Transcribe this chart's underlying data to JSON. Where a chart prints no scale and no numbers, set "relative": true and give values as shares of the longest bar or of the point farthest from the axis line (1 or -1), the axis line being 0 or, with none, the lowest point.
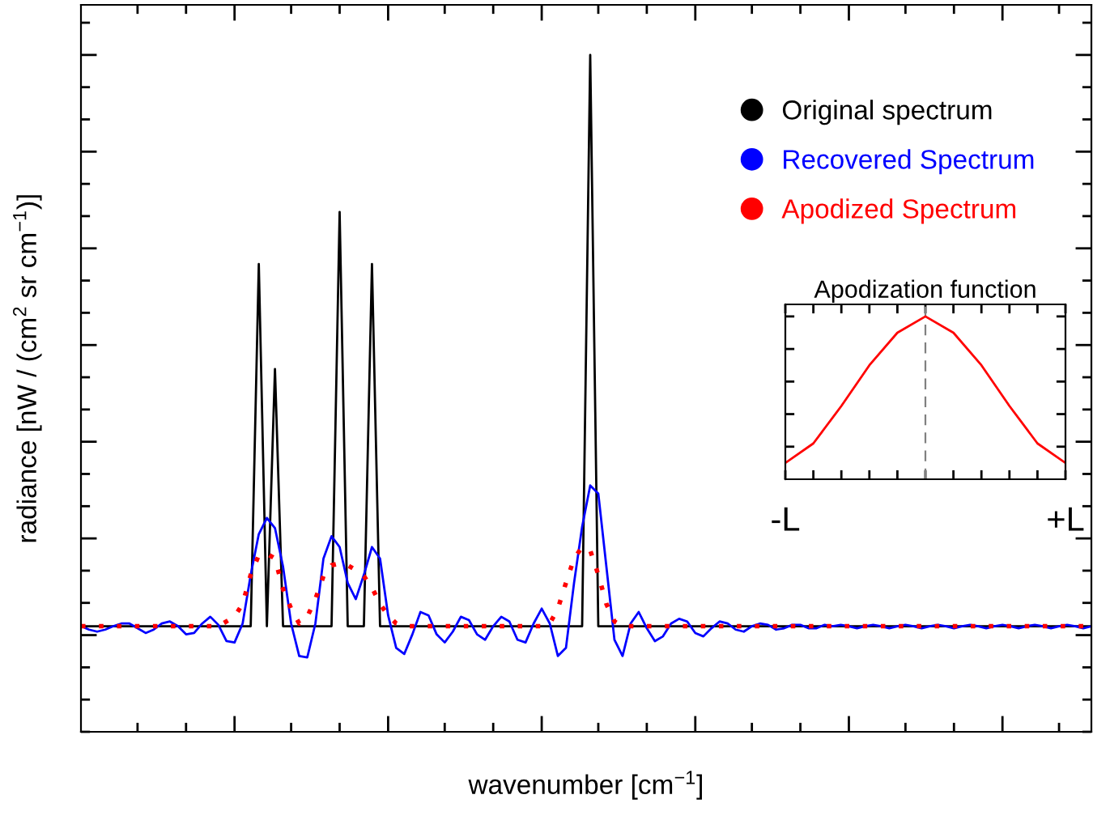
{
  "chart_data": [
    {
      "type": "line",
      "relative": true,
      "xlabel": "wavenumber [cm$^{−1}$]",
      "ylabel": "radiance [nW / (cm$^{2}$ sr cm$^{−1}$)]",
      "tick_labels": false,
      "legend": "top right",
      "categories": [
        null,
        null,
        null,
        null,
        null,
        null,
        null,
        null,
        null,
        null,
        null,
        null,
        null,
        null,
        null,
        null,
        null,
        null,
        null,
        null,
        null,
        null,
        null,
        null,
        null,
        null,
        null,
        null,
        null,
        null,
        null,
        null,
        null,
        null,
        null,
        null,
        null,
        null,
        null,
        null,
        null,
        null,
        null,
        null,
        null,
        null,
        null,
        null,
        null,
        null,
        null,
        null,
        null,
        null,
        null,
        null,
        null,
        null,
        null,
        null,
        null,
        null,
        null,
        null,
        null,
        null,
        null,
        null,
        null,
        null,
        null,
        null,
        null,
        null,
        null,
        null,
        null,
        null,
        null,
        null,
        null,
        null,
        null,
        null,
        null,
        null,
        null,
        null,
        null,
        null,
        null,
        null,
        null,
        null,
        null,
        null,
        null,
        null,
        null,
        null,
        null,
        null,
        null,
        null,
        null,
        null,
        null,
        null,
        null,
        null,
        null,
        null,
        null,
        null,
        null,
        null,
        null,
        null,
        null,
        null,
        null,
        null,
        null,
        null,
        null,
        null
      ],
      "series": [
        {
          "name": "Original spectrum",
          "color": "#000000",
          "line_style": "solid",
          "values": [
            0.156,
            0.156,
            0.156,
            0.156,
            0.156,
            0.156,
            0.156,
            0.156,
            0.156,
            0.156,
            0.156,
            0.156,
            0.156,
            0.156,
            0.156,
            0.156,
            0.156,
            0.156,
            0.156,
            0.156,
            0.156,
            0.156,
            0.691,
            0.156,
            0.536,
            0.156,
            0.156,
            0.156,
            0.156,
            0.156,
            0.156,
            0.156,
            0.768,
            0.156,
            0.156,
            0.156,
            0.691,
            0.156,
            0.156,
            0.156,
            0.156,
            0.156,
            0.156,
            0.156,
            0.156,
            0.156,
            0.156,
            0.156,
            0.156,
            0.156,
            0.156,
            0.156,
            0.156,
            0.156,
            0.156,
            0.156,
            0.156,
            0.156,
            0.156,
            0.156,
            0.156,
            0.156,
            0.156,
            1.0,
            0.156,
            0.156,
            0.156,
            0.156,
            0.156,
            0.156,
            0.156,
            0.156,
            0.156,
            0.156,
            0.156,
            0.156,
            0.156,
            0.156,
            0.156,
            0.156,
            0.156,
            0.156,
            0.156,
            0.156,
            0.156,
            0.156,
            0.156,
            0.156,
            0.156,
            0.156,
            0.156,
            0.156,
            0.156,
            0.156,
            0.156,
            0.156,
            0.156,
            0.156,
            0.156,
            0.156,
            0.156,
            0.156,
            0.156,
            0.156,
            0.156,
            0.156,
            0.156,
            0.156,
            0.156,
            0.156,
            0.156,
            0.156,
            0.156,
            0.156,
            0.156,
            0.156,
            0.156,
            0.156,
            0.156,
            0.156,
            0.156,
            0.156,
            0.156,
            0.156,
            0.156,
            0.156
          ]
        },
        {
          "name": "Recovered Spectrum",
          "color": "#0000ff",
          "line_style": "solid",
          "values": [
            0.156,
            0.151,
            0.148,
            0.151,
            0.156,
            0.16,
            0.16,
            0.153,
            0.146,
            0.151,
            0.16,
            0.163,
            0.156,
            0.144,
            0.146,
            0.16,
            0.17,
            0.158,
            0.134,
            0.132,
            0.16,
            0.232,
            0.292,
            0.316,
            0.301,
            0.244,
            0.16,
            0.112,
            0.11,
            0.16,
            0.256,
            0.289,
            0.273,
            0.22,
            0.196,
            0.232,
            0.273,
            0.256,
            0.172,
            0.124,
            0.115,
            0.144,
            0.177,
            0.172,
            0.144,
            0.132,
            0.148,
            0.17,
            0.165,
            0.144,
            0.136,
            0.156,
            0.17,
            0.163,
            0.136,
            0.132,
            0.16,
            0.182,
            0.16,
            0.112,
            0.124,
            0.22,
            0.303,
            0.364,
            0.352,
            0.244,
            0.136,
            0.112,
            0.16,
            0.177,
            0.153,
            0.134,
            0.141,
            0.16,
            0.167,
            0.163,
            0.146,
            0.141,
            0.153,
            0.163,
            0.16,
            0.151,
            0.148,
            0.156,
            0.16,
            0.158,
            0.151,
            0.153,
            0.158,
            0.158,
            0.153,
            0.153,
            0.158,
            0.156,
            0.158,
            0.156,
            0.153,
            0.156,
            0.158,
            0.156,
            0.153,
            0.156,
            0.158,
            0.156,
            0.153,
            0.156,
            0.158,
            0.156,
            0.153,
            0.156,
            0.158,
            0.156,
            0.153,
            0.156,
            0.158,
            0.156,
            0.153,
            0.156,
            0.158,
            0.156,
            0.153,
            0.156,
            0.158,
            0.156,
            0.153,
            0.156
          ]
        },
        {
          "name": "Apodized Spectrum",
          "color": "#ff0000",
          "line_style": "dotted",
          "values": [
            0.156,
            0.156,
            0.156,
            0.156,
            0.156,
            0.156,
            0.156,
            0.156,
            0.156,
            0.156,
            0.156,
            0.156,
            0.156,
            0.156,
            0.156,
            0.156,
            0.156,
            0.156,
            0.163,
            0.17,
            0.189,
            0.232,
            0.261,
            0.263,
            0.256,
            0.211,
            0.182,
            0.16,
            0.17,
            0.196,
            0.23,
            0.246,
            0.249,
            0.246,
            0.239,
            0.23,
            0.213,
            0.189,
            0.172,
            0.16,
            0.156,
            0.156,
            0.156,
            0.156,
            0.156,
            0.156,
            0.156,
            0.156,
            0.156,
            0.156,
            0.156,
            0.156,
            0.156,
            0.156,
            0.156,
            0.156,
            0.156,
            0.156,
            0.16,
            0.182,
            0.22,
            0.256,
            0.273,
            0.268,
            0.232,
            0.189,
            0.163,
            0.156,
            0.156,
            0.156,
            0.156,
            0.156,
            0.156,
            0.156,
            0.156,
            0.156,
            0.156,
            0.156,
            0.156,
            0.156,
            0.156,
            0.156,
            0.156,
            0.156,
            0.156,
            0.156,
            0.156,
            0.156,
            0.156,
            0.156,
            0.156,
            0.156,
            0.156,
            0.156,
            0.156,
            0.156,
            0.156,
            0.156,
            0.156,
            0.156,
            0.156,
            0.156,
            0.156,
            0.156,
            0.156,
            0.156,
            0.156,
            0.156,
            0.156,
            0.156,
            0.156,
            0.156,
            0.156,
            0.156,
            0.156,
            0.156,
            0.156,
            0.156,
            0.156,
            0.156,
            0.156,
            0.156,
            0.156,
            0.156,
            0.156,
            0.156
          ]
        }
      ]
    },
    {
      "type": "line",
      "relative": true,
      "title": "Apodization function",
      "tick_labels": "x",
      "categories": [
        "-L",
        null,
        null,
        null,
        null,
        null,
        null,
        null,
        null,
        null,
        "+L"
      ],
      "values": [
        0.1,
        0.22,
        0.45,
        0.7,
        0.9,
        1.0,
        0.9,
        0.7,
        0.45,
        0.22,
        0.1
      ],
      "color": "#ff0000"
    }
  ]
}
